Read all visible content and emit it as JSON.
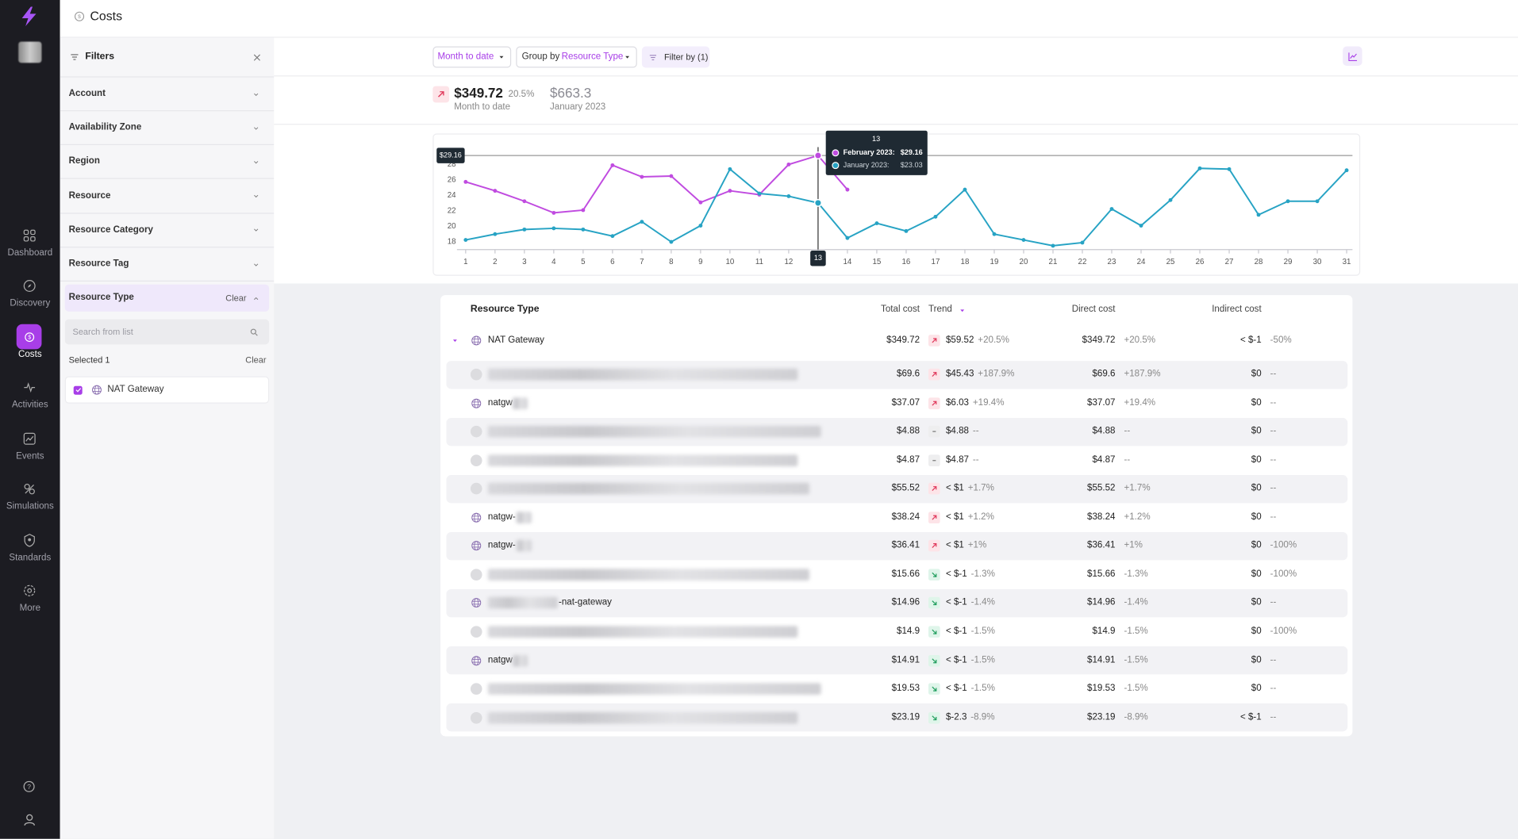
{
  "header": {
    "title": "Costs"
  },
  "nav": {
    "items": [
      "Dashboard",
      "Discovery",
      "Costs",
      "Activities",
      "Events",
      "Simulations",
      "Standards",
      "More"
    ],
    "active": 2
  },
  "filters": {
    "title": "Filters",
    "items": [
      "Account",
      "Availability Zone",
      "Region",
      "Resource",
      "Resource Category",
      "Resource Tag",
      "Resource Type"
    ],
    "open_item": 6,
    "clear": "Clear",
    "search_placeholder": "Search from list",
    "selected": "Selected 1",
    "selected_clear": "Clear",
    "options": [
      "NAT Gateway"
    ]
  },
  "toolbar": {
    "period": "Month to date",
    "group_by": "Group by",
    "group_value": "Resource Type",
    "filter": "Filter by (1)"
  },
  "summary": {
    "current": {
      "value": "$349.72",
      "change": "20.5%",
      "label": "Month to date"
    },
    "previous": {
      "value": "$663.3",
      "label": "January 2023"
    }
  },
  "chart_data": {
    "type": "line",
    "x": [
      1,
      2,
      3,
      4,
      5,
      6,
      7,
      8,
      9,
      10,
      11,
      12,
      13,
      14,
      15,
      16,
      17,
      18,
      19,
      20,
      21,
      22,
      23,
      24,
      25,
      26,
      27,
      28,
      29,
      30,
      31
    ],
    "xlim": [
      1,
      31
    ],
    "ylim": [
      17,
      30
    ],
    "yticks": [
      18,
      20,
      22,
      24,
      26,
      28
    ],
    "grid": false,
    "series": [
      {
        "name": "February 2023:",
        "color": "#c04be0",
        "values": [
          25.75,
          24.6,
          23.25,
          21.75,
          22.1,
          27.9,
          26.4,
          26.5,
          23.1,
          24.6,
          24.1,
          28,
          29.16,
          24.75,
          null,
          null,
          null,
          null,
          null,
          null,
          null,
          null,
          null,
          null,
          null,
          null,
          null,
          null,
          null,
          null,
          null
        ]
      },
      {
        "name": "January 2023:",
        "color": "#27a3c4",
        "values": [
          18.25,
          19,
          19.6,
          19.75,
          19.6,
          18.75,
          20.6,
          18,
          20.1,
          27.4,
          24.25,
          23.9,
          23.03,
          18.5,
          20.4,
          19.4,
          21.25,
          24.75,
          19,
          18.25,
          17.5,
          17.9,
          22.25,
          20.1,
          23.4,
          27.5,
          27.4,
          21.5,
          23.25,
          23.25,
          27.25
        ]
      }
    ],
    "tooltip": {
      "x": 13,
      "rows": [
        {
          "series": 0,
          "value": 29.16,
          "label": "$29.16"
        },
        {
          "series": 1,
          "value": 23.03,
          "label": "$23.03"
        }
      ]
    }
  },
  "table": {
    "columns": [
      "Resource Type",
      "Total cost",
      "Trend",
      "Direct cost",
      "Indirect cost"
    ],
    "group": {
      "name": "NAT Gateway",
      "total": "$349.72",
      "trend": "up",
      "trend_value": "$59.52",
      "trend_pct": "+20.5%",
      "direct": "$349.72",
      "direct_pct": "+20.5%",
      "indirect": "< $-1",
      "indirect_pct": "-50%"
    },
    "rows": [
      {
        "icon": "blank",
        "name": null,
        "total": "$69.6",
        "trend": "up",
        "trend_value": "$45.43",
        "trend_pct": "+187.9%",
        "direct": "$69.6",
        "direct_pct": "+187.9%",
        "indirect": "$0",
        "indirect_pct": "--"
      },
      {
        "icon": "globe",
        "name": "natgw",
        "total": "$37.07",
        "trend": "up",
        "trend_value": "$6.03",
        "trend_pct": "+19.4%",
        "direct": "$37.07",
        "direct_pct": "+19.4%",
        "indirect": "$0",
        "indirect_pct": "--"
      },
      {
        "icon": "blank",
        "name": null,
        "total": "$4.88",
        "trend": "flat",
        "trend_value": "$4.88",
        "trend_pct": "--",
        "direct": "$4.88",
        "direct_pct": "--",
        "indirect": "$0",
        "indirect_pct": "--"
      },
      {
        "icon": "blank",
        "name": null,
        "total": "$4.87",
        "trend": "flat",
        "trend_value": "$4.87",
        "trend_pct": "--",
        "direct": "$4.87",
        "direct_pct": "--",
        "indirect": "$0",
        "indirect_pct": "--"
      },
      {
        "icon": "blank",
        "name": null,
        "total": "$55.52",
        "trend": "up",
        "trend_value": "< $1",
        "trend_pct": "+1.7%",
        "direct": "$55.52",
        "direct_pct": "+1.7%",
        "indirect": "$0",
        "indirect_pct": "--"
      },
      {
        "icon": "globe",
        "name": "natgw-",
        "total": "$38.24",
        "trend": "up",
        "trend_value": "< $1",
        "trend_pct": "+1.2%",
        "direct": "$38.24",
        "direct_pct": "+1.2%",
        "indirect": "$0",
        "indirect_pct": "--"
      },
      {
        "icon": "globe",
        "name": "natgw-",
        "total": "$36.41",
        "trend": "up",
        "trend_value": "< $1",
        "trend_pct": "+1%",
        "direct": "$36.41",
        "direct_pct": "+1%",
        "indirect": "$0",
        "indirect_pct": "-100%"
      },
      {
        "icon": "blank",
        "name": null,
        "total": "$15.66",
        "trend": "down",
        "trend_value": "< $-1",
        "trend_pct": "-1.3%",
        "direct": "$15.66",
        "direct_pct": "-1.3%",
        "indirect": "$0",
        "indirect_pct": "-100%"
      },
      {
        "icon": "globe",
        "name": "-nat-gateway",
        "total": "$14.96",
        "trend": "down",
        "trend_value": "< $-1",
        "trend_pct": "-1.4%",
        "direct": "$14.96",
        "direct_pct": "-1.4%",
        "indirect": "$0",
        "indirect_pct": "--"
      },
      {
        "icon": "blank",
        "name": null,
        "total": "$14.9",
        "trend": "down",
        "trend_value": "< $-1",
        "trend_pct": "-1.5%",
        "direct": "$14.9",
        "direct_pct": "-1.5%",
        "indirect": "$0",
        "indirect_pct": "-100%"
      },
      {
        "icon": "globe",
        "name": "natgw",
        "total": "$14.91",
        "trend": "down",
        "trend_value": "< $-1",
        "trend_pct": "-1.5%",
        "direct": "$14.91",
        "direct_pct": "-1.5%",
        "indirect": "$0",
        "indirect_pct": "--"
      },
      {
        "icon": "blank",
        "name": null,
        "total": "$19.53",
        "trend": "down",
        "trend_value": "< $-1",
        "trend_pct": "-1.5%",
        "direct": "$19.53",
        "direct_pct": "-1.5%",
        "indirect": "$0",
        "indirect_pct": "--"
      },
      {
        "icon": "blank",
        "name": null,
        "total": "$23.19",
        "trend": "down",
        "trend_value": "$-2.3",
        "trend_pct": "-8.9%",
        "direct": "$23.19",
        "direct_pct": "-8.9%",
        "indirect": "< $-1",
        "indirect_pct": "--"
      }
    ]
  }
}
